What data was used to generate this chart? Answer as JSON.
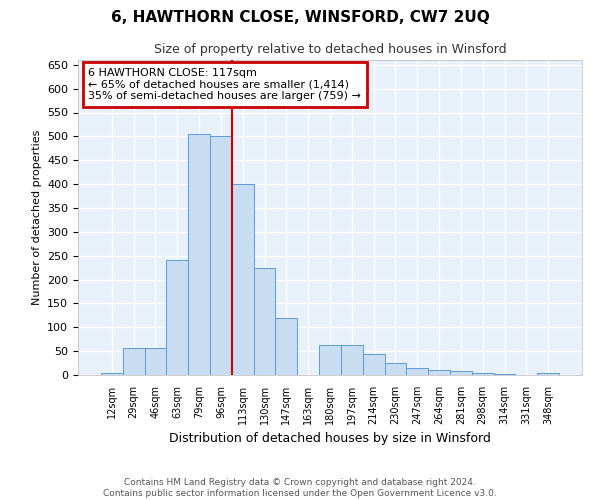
{
  "title": "6, HAWTHORN CLOSE, WINSFORD, CW7 2UQ",
  "subtitle": "Size of property relative to detached houses in Winsford",
  "xlabel": "Distribution of detached houses by size in Winsford",
  "ylabel": "Number of detached properties",
  "footnote1": "Contains HM Land Registry data © Crown copyright and database right 2024.",
  "footnote2": "Contains public sector information licensed under the Open Government Licence v3.0.",
  "bin_labels": [
    "12sqm",
    "29sqm",
    "46sqm",
    "63sqm",
    "79sqm",
    "96sqm",
    "113sqm",
    "130sqm",
    "147sqm",
    "163sqm",
    "180sqm",
    "197sqm",
    "214sqm",
    "230sqm",
    "247sqm",
    "264sqm",
    "281sqm",
    "298sqm",
    "314sqm",
    "331sqm",
    "348sqm"
  ],
  "bar_values": [
    5,
    57,
    57,
    240,
    505,
    500,
    400,
    225,
    120,
    0,
    62,
    62,
    45,
    25,
    15,
    10,
    8,
    5,
    3,
    0,
    5
  ],
  "bar_color": "#c8ddf2",
  "bar_edge_color": "#5b9bd5",
  "background_color": "#e8f0fa",
  "grid_color": "#ffffff",
  "vline_idx": 6,
  "vline_color": "#cc0000",
  "annotation_title": "6 HAWTHORN CLOSE: 117sqm",
  "annotation_line1": "← 65% of detached houses are smaller (1,414)",
  "annotation_line2": "35% of semi-detached houses are larger (759) →",
  "annotation_box_edgecolor": "#cc0000",
  "fig_facecolor": "#ffffff",
  "ylim": [
    0,
    660
  ],
  "yticks": [
    0,
    50,
    100,
    150,
    200,
    250,
    300,
    350,
    400,
    450,
    500,
    550,
    600,
    650
  ],
  "title_fontsize": 11,
  "subtitle_fontsize": 9,
  "ylabel_fontsize": 8,
  "xlabel_fontsize": 9,
  "ytick_fontsize": 8,
  "xtick_fontsize": 7,
  "annotation_fontsize": 8,
  "footnote_fontsize": 6.5
}
